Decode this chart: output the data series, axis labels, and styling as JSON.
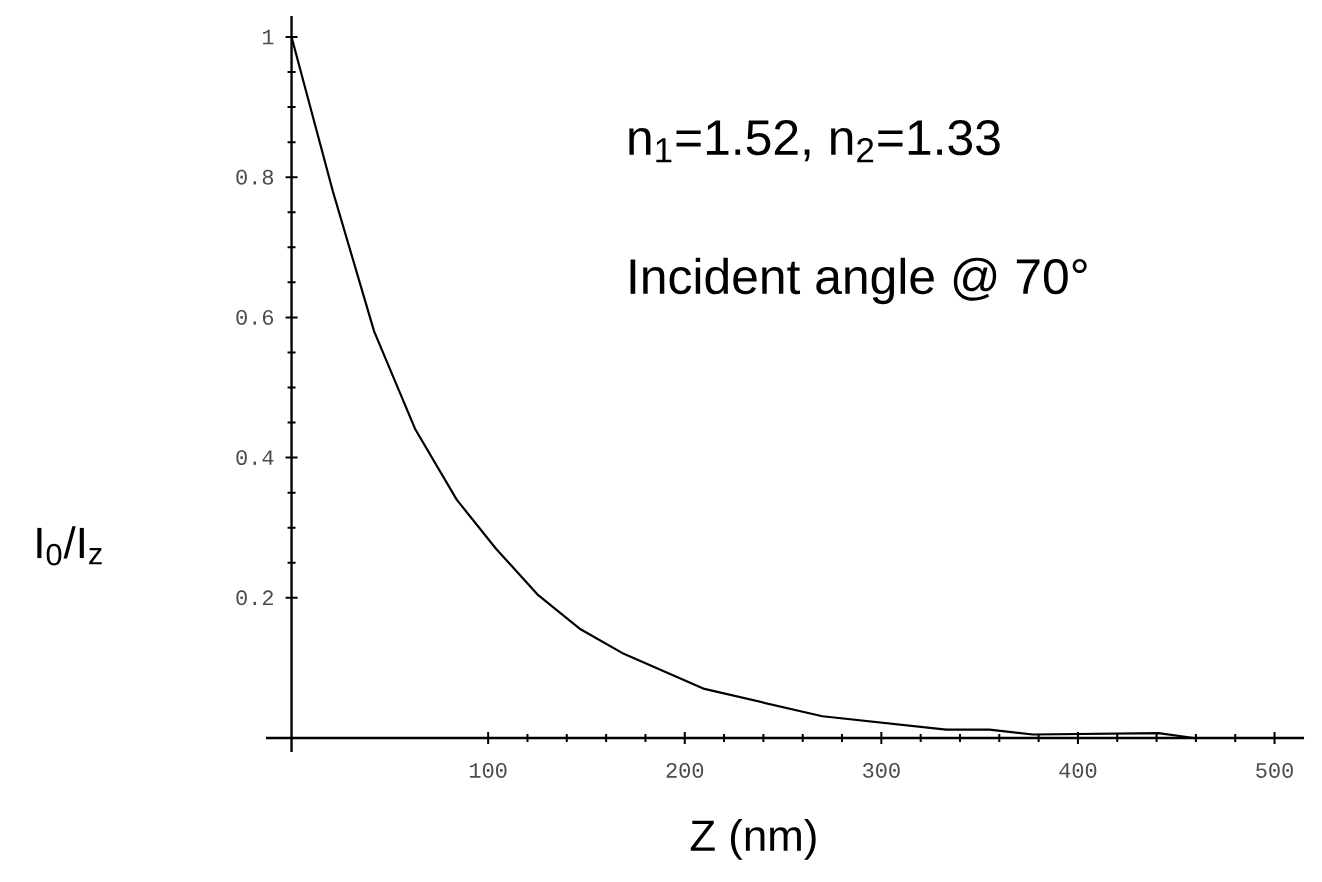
{
  "chart_data": {
    "type": "line",
    "xlabel": "Z  (nm)",
    "ylabel": "I$_{0}$/I$_{z}$",
    "annotations": [
      "n$_{1}$=1.52, n$_{2}$=1.33",
      "Incident angle @ 70°"
    ],
    "x": [
      0,
      21,
      42,
      63,
      84,
      104,
      125,
      147,
      169,
      210,
      270,
      333,
      355,
      377,
      441,
      459,
      503
    ],
    "series": [
      {
        "color": "#000000",
        "values": [
          1,
          0.78,
          0.58,
          0.44,
          0.34,
          0.27,
          0.205,
          0.155,
          0.12,
          0.07,
          0.031,
          0.012,
          0.012,
          0.005,
          0.007,
          0,
          0
        ]
      }
    ],
    "xlim": [
      -13,
      515
    ],
    "ylim": [
      -0.02,
      1.03
    ],
    "xticks": [
      100,
      200,
      300,
      400,
      500
    ],
    "yticks": [
      0.2,
      0.4,
      0.6,
      0.8,
      1
    ],
    "grid": false,
    "legend": false,
    "marker": "none",
    "line_style": "solid"
  }
}
